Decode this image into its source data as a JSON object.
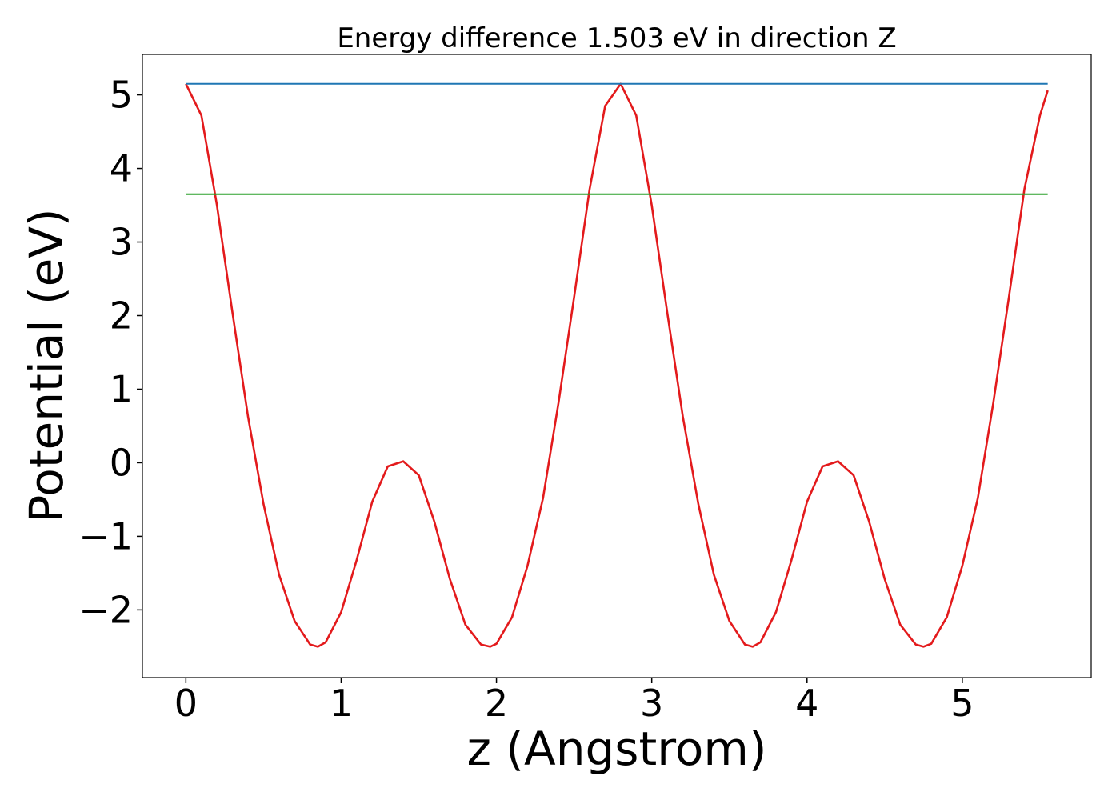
{
  "chart_data": {
    "type": "line",
    "title": "Energy difference 1.503 eV in direction Z",
    "xlabel": "z (Angstrom)",
    "ylabel": "Potential (eV)",
    "xlim": [
      -0.28,
      5.83
    ],
    "ylim": [
      -2.92,
      5.55
    ],
    "xticks": [
      0,
      1,
      2,
      3,
      4,
      5
    ],
    "xtick_labels": [
      "0",
      "1",
      "2",
      "3",
      "4",
      "5"
    ],
    "yticks": [
      -2,
      -1,
      0,
      1,
      2,
      3,
      4,
      5
    ],
    "ytick_labels": [
      "−2",
      "−1",
      "0",
      "1",
      "2",
      "3",
      "4",
      "5"
    ],
    "grid": false,
    "series": [
      {
        "kind": "curve",
        "color": "#e31a1c",
        "x": [
          0.0,
          0.1,
          0.2,
          0.3,
          0.4,
          0.5,
          0.6,
          0.7,
          0.8,
          0.85,
          0.9,
          1.0,
          1.1,
          1.2,
          1.3,
          1.4,
          1.5,
          1.6,
          1.7,
          1.8,
          1.9,
          1.96,
          2.0,
          2.1,
          2.2,
          2.3,
          2.4,
          2.5,
          2.6,
          2.7,
          2.8,
          2.9,
          3.0,
          3.1,
          3.2,
          3.3,
          3.4,
          3.5,
          3.6,
          3.65,
          3.7,
          3.8,
          3.9,
          4.0,
          4.1,
          4.2,
          4.3,
          4.4,
          4.5,
          4.6,
          4.7,
          4.75,
          4.8,
          4.9,
          5.0,
          5.1,
          5.2,
          5.3,
          5.4,
          5.5,
          5.55
        ],
        "y": [
          5.15,
          4.72,
          3.5,
          2.04,
          0.63,
          -0.56,
          -1.52,
          -2.15,
          -2.47,
          -2.5,
          -2.44,
          -2.03,
          -1.32,
          -0.53,
          -0.05,
          0.02,
          -0.17,
          -0.8,
          -1.58,
          -2.2,
          -2.47,
          -2.5,
          -2.46,
          -2.1,
          -1.4,
          -0.48,
          0.82,
          2.25,
          3.72,
          4.85,
          5.15,
          4.72,
          3.5,
          2.04,
          0.63,
          -0.56,
          -1.52,
          -2.15,
          -2.47,
          -2.5,
          -2.44,
          -2.03,
          -1.32,
          -0.53,
          -0.05,
          0.02,
          -0.17,
          -0.8,
          -1.58,
          -2.2,
          -2.47,
          -2.5,
          -2.46,
          -2.1,
          -1.4,
          -0.48,
          0.82,
          2.25,
          3.72,
          4.72,
          5.06
        ]
      },
      {
        "kind": "hline",
        "color": "#1f77b4",
        "x": [
          0.0,
          5.55
        ],
        "y": [
          5.15,
          5.15
        ]
      },
      {
        "kind": "hline",
        "color": "#2ca02c",
        "x": [
          0.0,
          5.55
        ],
        "y": [
          3.65,
          3.65
        ]
      }
    ]
  }
}
